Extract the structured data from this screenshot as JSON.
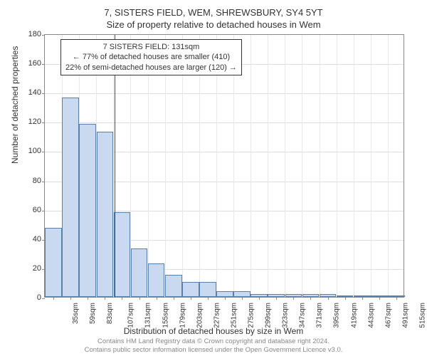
{
  "title_main": "7, SISTERS FIELD, WEM, SHREWSBURY, SY4 5YT",
  "title_sub": "Size of property relative to detached houses in Wem",
  "y_axis_label": "Number of detached properties",
  "x_axis_label": "Distribution of detached houses by size in Wem",
  "footer_line1": "Contains HM Land Registry data © Crown copyright and database right 2024.",
  "footer_line2": "Contains public sector information licensed under the Open Government Licence v3.0.",
  "callout": {
    "line1": "7 SISTERS FIELD: 131sqm",
    "line2": "← 77% of detached houses are smaller (410)",
    "line3": "22% of semi-detached houses are larger (120) →"
  },
  "chart": {
    "type": "histogram",
    "ylim": [
      0,
      180
    ],
    "ytick_step": 20,
    "yticks": [
      0,
      20,
      40,
      60,
      80,
      100,
      120,
      140,
      160,
      180
    ],
    "x_categories": [
      "35sqm",
      "59sqm",
      "83sqm",
      "107sqm",
      "131sqm",
      "155sqm",
      "179sqm",
      "203sqm",
      "227sqm",
      "251sqm",
      "275sqm",
      "299sqm",
      "323sqm",
      "347sqm",
      "371sqm",
      "395sqm",
      "419sqm",
      "443sqm",
      "467sqm",
      "491sqm",
      "515sqm"
    ],
    "bar_values": [
      47,
      136,
      118,
      113,
      58,
      33,
      23,
      15,
      10,
      10,
      4,
      4,
      2,
      2,
      2,
      2,
      2,
      1,
      1,
      1,
      1
    ],
    "bar_fill_color": "#c9daf0",
    "bar_border_color": "#5b7fab",
    "marker_x_category_index": 4,
    "marker_color": "#ff0000",
    "background_color": "#ffffff",
    "grid_color": "#dddddd",
    "plot_border_color": "#888888",
    "title_fontsize": 13,
    "axis_label_fontsize": 12,
    "tick_fontsize": 11,
    "callout_fontsize": 11,
    "footer_fontsize": 9.5,
    "footer_color": "#888888"
  }
}
